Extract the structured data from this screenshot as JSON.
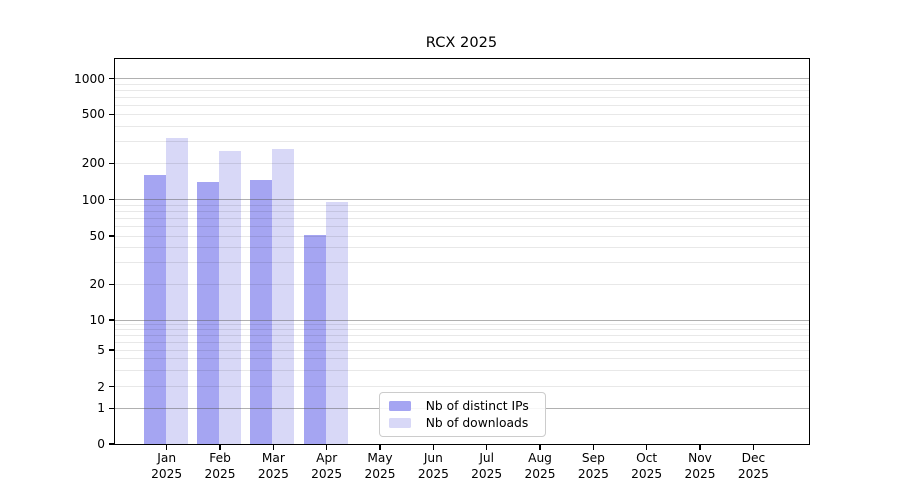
{
  "chart": {
    "title": "RCX 2025"
  },
  "chart_data": {
    "type": "bar",
    "title": "RCX 2025",
    "categories": [
      "Jan 2025",
      "Feb 2025",
      "Mar 2025",
      "Apr 2025",
      "May 2025",
      "Jun 2025",
      "Jul 2025",
      "Aug 2025",
      "Sep 2025",
      "Oct 2025",
      "Nov 2025",
      "Dec 2025"
    ],
    "series": [
      {
        "name": "Nb of distinct IPs",
        "color": "#a5a5f2",
        "values": [
          160,
          140,
          145,
          51,
          null,
          null,
          null,
          null,
          null,
          null,
          null,
          null
        ]
      },
      {
        "name": "Nb of downloads",
        "color": "#d8d8f7",
        "values": [
          320,
          250,
          260,
          95,
          null,
          null,
          null,
          null,
          null,
          null,
          null,
          null
        ]
      }
    ],
    "xlabel": "",
    "ylabel": "",
    "yscale": "symlog",
    "yticks": [
      0,
      1,
      2,
      5,
      10,
      20,
      50,
      100,
      200,
      500,
      1000
    ],
    "ylim": [
      0,
      1400
    ],
    "grid": "horizontal, major decades darker + minor log subdivisions lighter, drawn over bars",
    "legend_position": "inside plot, bottom center-left"
  },
  "legend": {
    "items": [
      {
        "label": "Nb of distinct IPs",
        "color": "#a5a5f2"
      },
      {
        "label": "Nb of downloads",
        "color": "#d8d8f7"
      }
    ]
  },
  "colors": {
    "background": "#ffffff",
    "spine": "#000000",
    "major_grid": "#9a9a9a",
    "minor_grid": "#e8e8e8",
    "text": "#000000"
  }
}
